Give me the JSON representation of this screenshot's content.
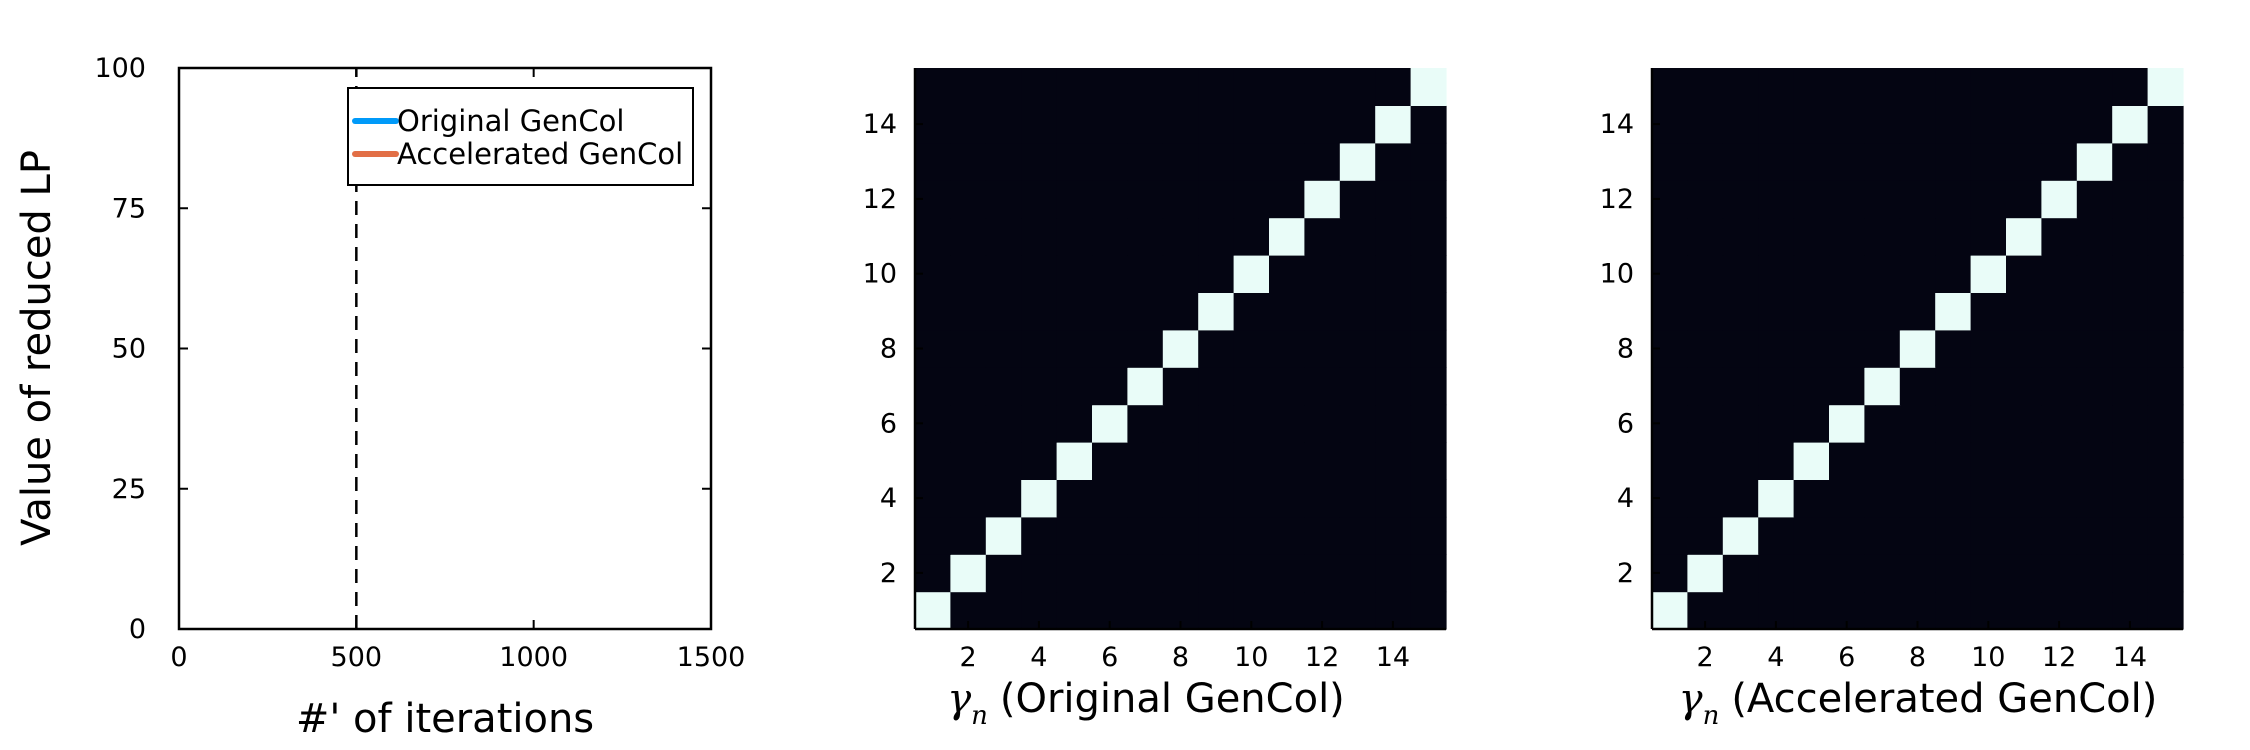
{
  "chart_data": [
    {
      "type": "line",
      "xlabel": "#' of iterations",
      "ylabel": "Value of reduced LP",
      "xlim": [
        0,
        1500
      ],
      "ylim": [
        0,
        100
      ],
      "xticks": [
        0,
        500,
        1000,
        1500
      ],
      "yticks": [
        0,
        25,
        50,
        75,
        100
      ],
      "xtick_labels": [
        "0",
        "500",
        "1000",
        "1500"
      ],
      "ytick_labels": [
        "0",
        "25",
        "50",
        "75",
        "100"
      ],
      "grid": false,
      "legend_position": "top-right",
      "series": [
        {
          "name": "Original GenCol",
          "color": "#009af9",
          "x": [],
          "y": []
        },
        {
          "name": "Accelerated GenCol",
          "color": "#e26f46",
          "x": [],
          "y": []
        }
      ],
      "annotations": [
        {
          "type": "vline",
          "x": 500,
          "style": "dashed",
          "color": "#000000"
        }
      ]
    },
    {
      "type": "heatmap",
      "xlabel_symbol": "γ",
      "xlabel_subscript": "n",
      "xlabel": "(Original GenCol)",
      "size": 15,
      "xlim": [
        0.5,
        15.5
      ],
      "ylim": [
        0.5,
        15.5
      ],
      "xticks": [
        2,
        4,
        6,
        8,
        10,
        12,
        14
      ],
      "yticks": [
        2,
        4,
        6,
        8,
        10,
        12,
        14
      ],
      "xtick_labels": [
        "2",
        "4",
        "6",
        "8",
        "10",
        "12",
        "14"
      ],
      "ytick_labels": [
        "2",
        "4",
        "6",
        "8",
        "10",
        "12",
        "14"
      ],
      "low_color": "#040512",
      "high_color": "#e9fcf8",
      "diagonal_value": 1,
      "off_diagonal_value": 0
    },
    {
      "type": "heatmap",
      "xlabel_symbol": "γ",
      "xlabel_subscript": "n",
      "xlabel": "(Accelerated GenCol)",
      "size": 15,
      "xlim": [
        0.5,
        15.5
      ],
      "ylim": [
        0.5,
        15.5
      ],
      "xticks": [
        2,
        4,
        6,
        8,
        10,
        12,
        14
      ],
      "yticks": [
        2,
        4,
        6,
        8,
        10,
        12,
        14
      ],
      "xtick_labels": [
        "2",
        "4",
        "6",
        "8",
        "10",
        "12",
        "14"
      ],
      "ytick_labels": [
        "2",
        "4",
        "6",
        "8",
        "10",
        "12",
        "14"
      ],
      "low_color": "#040512",
      "high_color": "#e9fcf8",
      "diagonal_value": 1,
      "off_diagonal_value": 0
    }
  ]
}
